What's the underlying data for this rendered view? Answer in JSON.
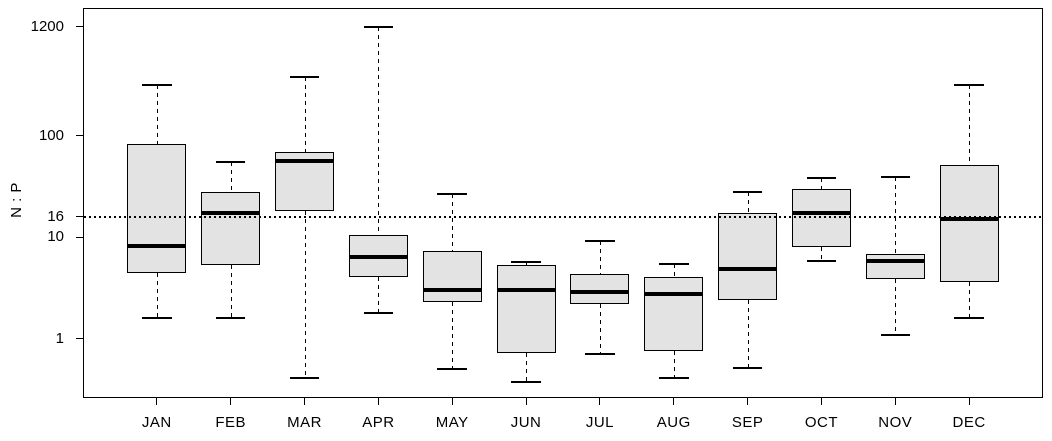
{
  "chart_data": {
    "type": "boxplot",
    "title": "",
    "xlabel": "",
    "ylabel": "N : P",
    "y_scale": "log",
    "ylim": [
      0.26,
      1830
    ],
    "xlim": [
      0,
      13
    ],
    "grid": false,
    "legend": null,
    "reference_line": {
      "value": 16,
      "style": "dotted"
    },
    "y_ticks": [
      {
        "label": "1200",
        "value": 1200
      },
      {
        "label": "100",
        "value": 100
      },
      {
        "label": "16",
        "value": 16
      },
      {
        "label": "10",
        "value": 10
      },
      {
        "label": "1",
        "value": 1
      }
    ],
    "categories": [
      "JAN",
      "FEB",
      "MAR",
      "APR",
      "MAY",
      "JUN",
      "JUL",
      "AUG",
      "SEP",
      "OCT",
      "NOV",
      "DEC"
    ],
    "box_width_data_units": 0.8,
    "series": [
      {
        "month": "JAN",
        "whisker_low": 1.6,
        "q1": 4.4,
        "median": 8.2,
        "q3": 84,
        "whisker_high": 320
      },
      {
        "month": "FEB",
        "whisker_low": 1.6,
        "q1": 5.3,
        "median": 17.5,
        "q3": 28,
        "whisker_high": 55
      },
      {
        "month": "MAR",
        "whisker_low": 0.41,
        "q1": 18,
        "median": 56,
        "q3": 69,
        "whisker_high": 380
      },
      {
        "month": "APR",
        "whisker_low": 1.8,
        "q1": 4.1,
        "median": 6.4,
        "q3": 10.5,
        "whisker_high": 1200
      },
      {
        "month": "MAY",
        "whisker_low": 0.5,
        "q1": 2.3,
        "median": 3.0,
        "q3": 7.3,
        "whisker_high": 27
      },
      {
        "month": "JUN",
        "whisker_low": 0.37,
        "q1": 0.72,
        "median": 3.0,
        "q3": 5.3,
        "whisker_high": 5.7
      },
      {
        "month": "JUL",
        "whisker_low": 0.7,
        "q1": 2.2,
        "median": 2.9,
        "q3": 4.3,
        "whisker_high": 9.1
      },
      {
        "month": "AUG",
        "whisker_low": 0.41,
        "q1": 0.75,
        "median": 2.75,
        "q3": 4.1,
        "whisker_high": 5.5
      },
      {
        "month": "SEP",
        "whisker_low": 0.51,
        "q1": 2.4,
        "median": 4.9,
        "q3": 17.2,
        "whisker_high": 28
      },
      {
        "month": "OCT",
        "whisker_low": 5.9,
        "q1": 8.0,
        "median": 17.5,
        "q3": 30,
        "whisker_high": 38.5
      },
      {
        "month": "NOV",
        "whisker_low": 1.1,
        "q1": 3.9,
        "median": 5.9,
        "q3": 6.9,
        "whisker_high": 39
      },
      {
        "month": "DEC",
        "whisker_low": 1.6,
        "q1": 3.6,
        "median": 15,
        "q3": 52,
        "whisker_high": 318
      }
    ],
    "colors": {
      "box_fill": "#e3e3e3",
      "box_border": "#000000",
      "median": "#000000",
      "whisker": "#000000",
      "reference_line": "#000000",
      "axis": "#000000",
      "text": "#000000",
      "background": "#ffffff"
    }
  }
}
